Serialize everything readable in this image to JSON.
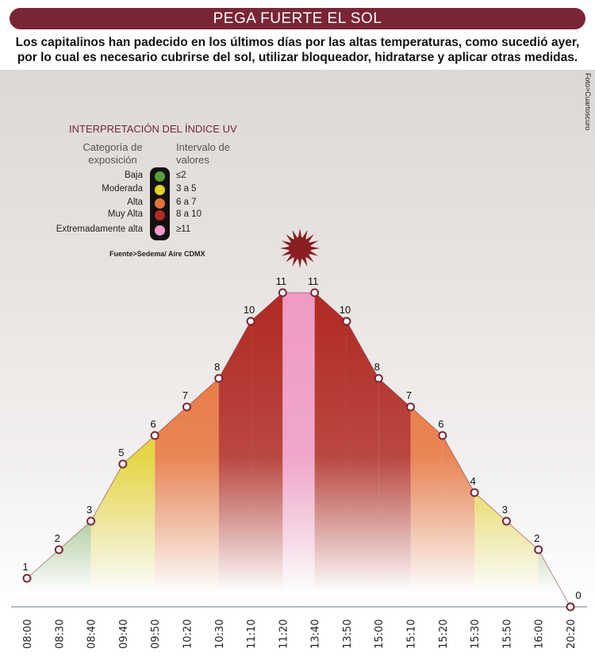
{
  "title": "PEGA FUERTE EL SOL",
  "subtitle": "Los capitalinos han padecido en los últimos días por las altas temperaturas, como sucedió ayer, por lo cual es necesario cubrirse del sol, utilizar bloqueador, hidratarse y aplicar otras medidas.",
  "photo_credit": "Foto>Cuartoscuro",
  "legend": {
    "title": "INTERPRETACIÓN DEL ÍNDICE UV",
    "col1": "Categoría de exposición",
    "col2": "Intervalo de valores",
    "rows": [
      {
        "category": "Baja",
        "range": "≤2",
        "color": "#5a9e3a"
      },
      {
        "category": "Moderada",
        "range": "3 a 5",
        "color": "#e3d22a"
      },
      {
        "category": "Alta",
        "range": "6 a 7",
        "color": "#e8733a"
      },
      {
        "category": "Muy Alta",
        "range": "8 a 10",
        "color": "#b02a22"
      },
      {
        "category": "Extremadamente alta",
        "range": "≥11",
        "color": "#f09ac4"
      }
    ],
    "source": "Fuente>Sedema/ Aire CDMX"
  },
  "chart_data": {
    "type": "area",
    "title": "Índice UV",
    "categories": [
      "08:00",
      "08:30",
      "08:40",
      "09:40",
      "09:50",
      "10:20",
      "10:30",
      "11:10",
      "11:20",
      "13:40",
      "13:50",
      "15:00",
      "15:10",
      "15:20",
      "15:30",
      "15:50",
      "16:00",
      "20:20"
    ],
    "values": [
      1,
      2,
      3,
      5,
      6,
      7,
      8,
      10,
      11,
      11,
      10,
      8,
      7,
      6,
      4,
      3,
      2,
      0
    ],
    "segment_colors": [
      "#5a9e3a",
      "#5a9e3a",
      "#e3d22a",
      "#e3d22a",
      "#e8733a",
      "#e8733a",
      "#b02a22",
      "#b02a22",
      "#f09ac4",
      "#b02a22",
      "#b02a22",
      "#b02a22",
      "#e8733a",
      "#e8733a",
      "#e3d22a",
      "#e3d22a",
      "#5a9e3a"
    ],
    "ylim": [
      0,
      11
    ],
    "marker_color": "#7a2535"
  }
}
